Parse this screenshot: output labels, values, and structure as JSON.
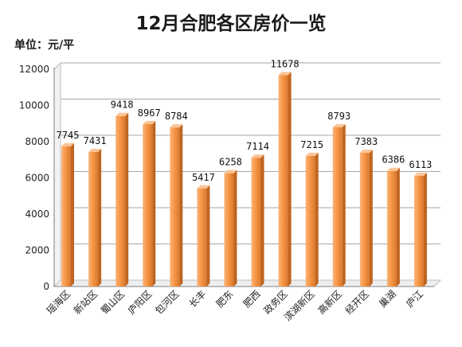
{
  "chart_data": {
    "type": "bar",
    "title": "12月合肥各区房价一览",
    "ylabel": "单位：元/平",
    "xlabel": "",
    "ylim": [
      0,
      12000
    ],
    "yticks": [
      0,
      2000,
      4000,
      6000,
      8000,
      10000,
      12000
    ],
    "grid": true,
    "legend": "none",
    "bar_color": "#F79646",
    "categories": [
      "瑶海区",
      "新站区",
      "蜀山区",
      "庐阳区",
      "包河区",
      "长丰",
      "肥东",
      "肥西",
      "政务区",
      "滨湖新区",
      "高新区",
      "经开区",
      "巢湖",
      "庐江"
    ],
    "values": [
      7745,
      7431,
      9418,
      8967,
      8784,
      5417,
      6258,
      7114,
      11678,
      7215,
      8793,
      7383,
      6386,
      6113
    ]
  }
}
